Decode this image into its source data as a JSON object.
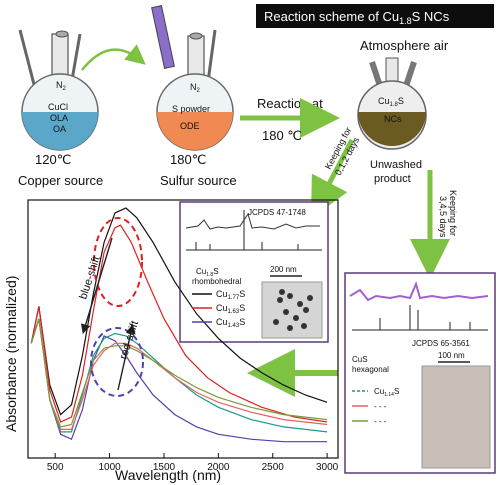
{
  "title": {
    "text": "Reaction scheme of Cu",
    "sub": "1.8",
    "tail": "S NCs"
  },
  "flask1": {
    "gas": "N",
    "gas_sub": "2",
    "lines": [
      "CuCl",
      "OLA",
      "OA"
    ],
    "temp": "120℃",
    "caption": "Copper source",
    "color": "#5aa7c9"
  },
  "flask2": {
    "gas": "N",
    "gas_sub": "2",
    "lines": [
      "S powder",
      "ODE"
    ],
    "temp": "180℃",
    "caption": "Sulfur source",
    "color": "#f18a52"
  },
  "flask3": {
    "top": "Atmosphere air",
    "label_main": "Cu",
    "label_sub": "1.8",
    "label_tail": "S",
    "label2": "NCs",
    "caption1": "Unwashed",
    "caption2": "product",
    "color": "#6b5a22"
  },
  "reaction": {
    "line1": "Reaction at",
    "line2": "180 ℃"
  },
  "keep1": {
    "line1": "Keeping for",
    "line2": "0,1,2 days"
  },
  "keep2": {
    "line1": "Keeping for",
    "line2": "3,4,5 days"
  },
  "inset1": {
    "jcpds": "JCPDS 47-1748",
    "phase_main": "Cu",
    "phase_sub": "1.8",
    "phase_tail": "S",
    "phase2": "rhombohedral",
    "scale": "200 nm"
  },
  "inset2": {
    "jcpds": "JCPDS 65-3561",
    "phase": "CuS",
    "phase2": "hexagonal",
    "scale": "100 nm",
    "legend_main": "Cu",
    "legend_sub": "1.14",
    "legend_tail": "S",
    "dash": "- - -"
  },
  "shifts": {
    "blue": "blue-shift",
    "red": "red-shift"
  },
  "chart_data": {
    "type": "line",
    "xlabel": "Wavelength (nm)",
    "ylabel": "Absorbance (normalized)",
    "xlim": [
      250,
      3100
    ],
    "xticks": [
      "500",
      "1000",
      "1500",
      "2000",
      "2500",
      "3000"
    ],
    "series": [
      {
        "name": "Cu1.77S",
        "color": "#111111",
        "x": [
          280,
          350,
          450,
          550,
          650,
          750,
          850,
          950,
          1050,
          1150,
          1250,
          1400,
          1600,
          1800,
          2000,
          2200,
          2400,
          2600,
          2800,
          3000
        ],
        "y": [
          0.45,
          0.6,
          0.28,
          0.16,
          0.2,
          0.4,
          0.65,
          0.86,
          0.98,
          1.0,
          0.96,
          0.86,
          0.7,
          0.57,
          0.47,
          0.39,
          0.33,
          0.28,
          0.24,
          0.21
        ]
      },
      {
        "name": "Cu1.63S",
        "color": "#e02020",
        "x": [
          280,
          350,
          450,
          550,
          650,
          750,
          850,
          950,
          1050,
          1100,
          1200,
          1350,
          1500,
          1700,
          1900,
          2100,
          2400,
          2700,
          3000
        ],
        "y": [
          0.45,
          0.6,
          0.26,
          0.13,
          0.15,
          0.32,
          0.58,
          0.82,
          0.92,
          0.93,
          0.86,
          0.7,
          0.55,
          0.4,
          0.31,
          0.25,
          0.19,
          0.15,
          0.13
        ]
      },
      {
        "name": "Cu1.43S",
        "color": "#5040b0",
        "x": [
          280,
          350,
          450,
          550,
          650,
          750,
          850,
          950,
          1050,
          1150,
          1250,
          1400,
          1600,
          1800,
          2000,
          2300,
          2600,
          3000
        ],
        "y": [
          0.45,
          0.55,
          0.22,
          0.08,
          0.06,
          0.18,
          0.38,
          0.48,
          0.46,
          0.4,
          0.33,
          0.24,
          0.16,
          0.11,
          0.08,
          0.06,
          0.05,
          0.05
        ]
      },
      {
        "name": "Cu1.14S",
        "color": "#1a9a8a",
        "x": [
          280,
          350,
          450,
          550,
          650,
          750,
          850,
          950,
          1050,
          1150,
          1250,
          1400,
          1600,
          1800,
          2000,
          2300,
          2600,
          3000
        ],
        "y": [
          0.45,
          0.55,
          0.22,
          0.09,
          0.09,
          0.24,
          0.4,
          0.47,
          0.49,
          0.48,
          0.45,
          0.39,
          0.31,
          0.24,
          0.19,
          0.14,
          0.11,
          0.09
        ]
      },
      {
        "name": "",
        "color": "#e86060",
        "x": [
          280,
          350,
          450,
          550,
          650,
          750,
          850,
          950,
          1050,
          1150,
          1250,
          1400,
          1600,
          1800,
          2000,
          2300,
          2600,
          3000
        ],
        "y": [
          0.45,
          0.55,
          0.22,
          0.1,
          0.1,
          0.22,
          0.36,
          0.42,
          0.45,
          0.45,
          0.43,
          0.38,
          0.31,
          0.25,
          0.21,
          0.17,
          0.14,
          0.12
        ]
      },
      {
        "name": "",
        "color": "#7a9a3a",
        "x": [
          280,
          350,
          450,
          550,
          650,
          750,
          850,
          950,
          1050,
          1150,
          1250,
          1400,
          1600,
          1800,
          2000,
          2300,
          2600,
          3000
        ],
        "y": [
          0.45,
          0.55,
          0.22,
          0.11,
          0.12,
          0.25,
          0.38,
          0.43,
          0.44,
          0.44,
          0.42,
          0.38,
          0.32,
          0.27,
          0.23,
          0.19,
          0.16,
          0.14
        ]
      }
    ],
    "legend": [
      "Cu1.77S",
      "Cu1.63S",
      "Cu1.43S"
    ]
  }
}
